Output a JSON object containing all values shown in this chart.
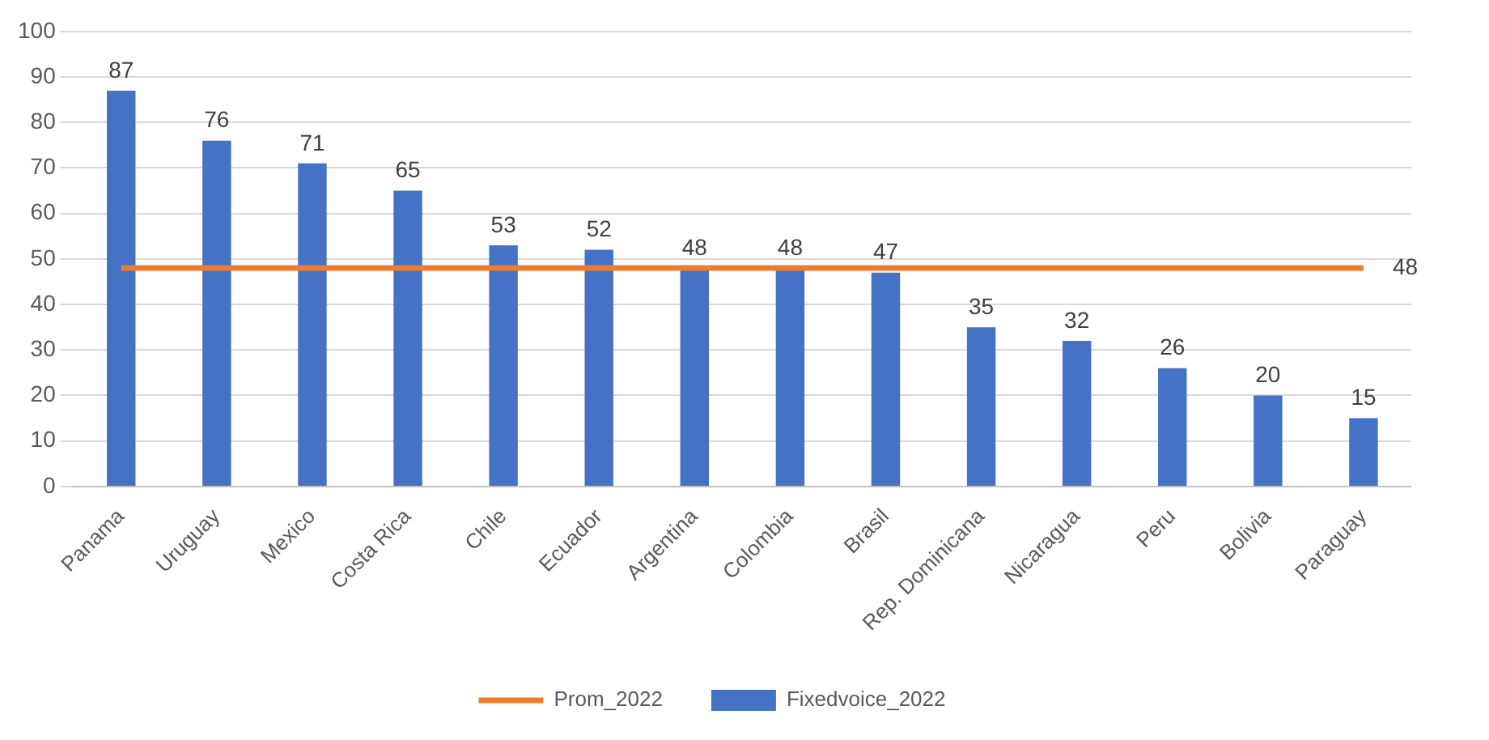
{
  "chart_data": {
    "type": "bar",
    "categories": [
      "Panama",
      "Uruguay",
      "Mexico",
      "Costa Rica",
      "Chile",
      "Ecuador",
      "Argentina",
      "Colombia",
      "Brasil",
      "Rep. Dominicana",
      "Nicaragua",
      "Peru",
      "Bolivia",
      "Paraguay"
    ],
    "series": [
      {
        "name": "Fixedvoice_2022",
        "color": "#4472c4",
        "values": [
          87,
          76,
          71,
          65,
          53,
          52,
          48,
          48,
          47,
          35,
          32,
          26,
          20,
          15
        ],
        "value_labels": [
          "87",
          "76",
          "71",
          "65",
          "53",
          "52",
          "48",
          "48",
          "47",
          "35",
          "32",
          "26",
          "20",
          "15"
        ]
      },
      {
        "name": "Prom_2022",
        "type": "line",
        "color": "#ed7d31",
        "values": [
          48,
          48,
          48,
          48,
          48,
          48,
          48,
          48,
          48,
          48,
          48,
          48,
          48,
          48
        ],
        "value_labels": [
          null,
          null,
          null,
          null,
          null,
          null,
          null,
          null,
          null,
          null,
          null,
          null,
          null,
          "48"
        ]
      }
    ],
    "ylim": [
      0,
      100
    ],
    "yticks": [
      0,
      10,
      20,
      30,
      40,
      50,
      60,
      70,
      80,
      90,
      100
    ],
    "grid": "y",
    "legend": "bottom",
    "marker": "none"
  }
}
